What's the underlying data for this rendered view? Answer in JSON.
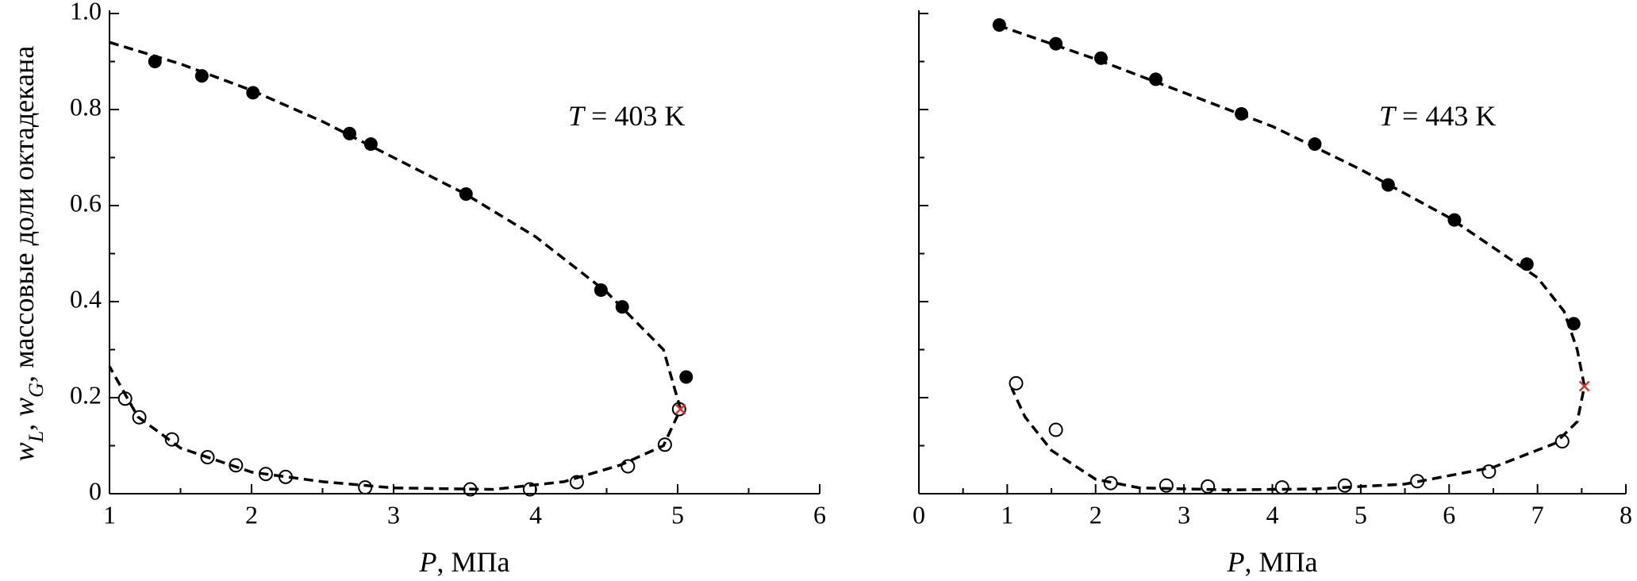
{
  "chart_data": [
    {
      "type": "scatter",
      "ylabel": [
        {
          "text": "w",
          "italic": true
        },
        {
          "text": "L",
          "italic": true,
          "sub": true
        },
        {
          "text": ", "
        },
        {
          "text": "w",
          "italic": true
        },
        {
          "text": "G",
          "italic": true,
          "sub": true
        },
        {
          "text": ", массовые доли октадекана"
        }
      ],
      "xlabel": [
        {
          "text": "P",
          "italic": true
        },
        {
          "text": ", МПа"
        }
      ],
      "annotation": [
        {
          "text": "T",
          "italic": true
        },
        {
          "text": " = 403 K"
        }
      ],
      "xlim": [
        1,
        6
      ],
      "ylim": [
        0,
        1
      ],
      "xticks": [
        1,
        2,
        3,
        4,
        5,
        6
      ],
      "xminorticks": [
        1.5,
        2.5,
        3.5,
        4.5,
        5.5
      ],
      "yticks": [
        0,
        0.2,
        0.4,
        0.6,
        0.8,
        {
          "value": 1,
          "label": "1.0"
        }
      ],
      "yminorticks": [
        0.1,
        0.3,
        0.5,
        0.7,
        0.9
      ],
      "ytick_labels": true,
      "series": [
        {
          "marker": "filled",
          "color": "#000000",
          "x": [
            1.32,
            1.65,
            2.01,
            2.69,
            2.84,
            3.51,
            4.46,
            4.61,
            5.06
          ],
          "values": [
            0.9,
            0.87,
            0.835,
            0.75,
            0.728,
            0.624,
            0.424,
            0.389,
            0.243
          ]
        },
        {
          "marker": "open",
          "color": "#000000",
          "x": [
            1.11,
            1.21,
            1.44,
            1.69,
            1.89,
            2.1,
            2.24,
            2.8,
            3.54,
            3.96,
            4.29,
            4.65,
            4.91,
            5.01
          ],
          "values": [
            0.198,
            0.159,
            0.113,
            0.076,
            0.059,
            0.041,
            0.035,
            0.013,
            0.009,
            0.009,
            0.024,
            0.057,
            0.102,
            0.176
          ]
        },
        {
          "marker": "dashed-line",
          "color": "#000000",
          "x": [
            1.0,
            1.5,
            2.0,
            2.5,
            3.0,
            3.5,
            4.0,
            4.5,
            4.9,
            5.02,
            4.9,
            4.6,
            4.2,
            3.7,
            3.0,
            2.5,
            2.0,
            1.5,
            1.2,
            1.0
          ],
          "values": [
            0.94,
            0.895,
            0.84,
            0.775,
            0.7,
            0.625,
            0.535,
            0.42,
            0.3,
            0.176,
            0.1,
            0.06,
            0.025,
            0.009,
            0.012,
            0.025,
            0.045,
            0.095,
            0.16,
            0.265
          ]
        },
        {
          "marker": "cross",
          "color": "#e03030",
          "x": [
            5.02
          ],
          "values": [
            0.176
          ]
        }
      ]
    },
    {
      "type": "scatter",
      "xlabel": [
        {
          "text": "P",
          "italic": true
        },
        {
          "text": ", МПа"
        }
      ],
      "annotation": [
        {
          "text": "T",
          "italic": true
        },
        {
          "text": " = 443 K"
        }
      ],
      "xlim": [
        0,
        8
      ],
      "ylim": [
        0,
        1
      ],
      "xticks": [
        0,
        1,
        2,
        3,
        4,
        5,
        6,
        7,
        8
      ],
      "xminorticks": [
        0.5,
        1.5,
        2.5,
        3.5,
        4.5,
        5.5,
        6.5,
        7.5
      ],
      "yticks": [
        0,
        0.2,
        0.4,
        0.6,
        0.8,
        1
      ],
      "yminorticks": [
        0.1,
        0.3,
        0.5,
        0.7,
        0.9
      ],
      "ytick_labels": false,
      "series": [
        {
          "marker": "filled",
          "color": "#000000",
          "x": [
            0.91,
            1.55,
            2.06,
            2.68,
            3.65,
            4.48,
            5.31,
            6.06,
            6.88,
            7.41
          ],
          "values": [
            0.976,
            0.937,
            0.907,
            0.863,
            0.791,
            0.728,
            0.643,
            0.57,
            0.478,
            0.354
          ]
        },
        {
          "marker": "open",
          "color": "#000000",
          "x": [
            1.1,
            1.55,
            2.17,
            2.8,
            3.27,
            4.11,
            4.82,
            5.64,
            6.45,
            7.28
          ],
          "values": [
            0.23,
            0.133,
            0.022,
            0.017,
            0.015,
            0.013,
            0.017,
            0.026,
            0.046,
            0.109
          ]
        },
        {
          "marker": "dashed-line",
          "color": "#000000",
          "x": [
            0.9,
            2.0,
            3.0,
            4.0,
            5.0,
            6.0,
            7.0,
            7.3,
            7.45,
            7.53,
            7.45,
            7.2,
            6.5,
            5.5,
            4.5,
            3.5,
            2.5,
            2.0,
            1.5,
            1.2,
            1.05
          ],
          "values": [
            0.975,
            0.905,
            0.835,
            0.765,
            0.675,
            0.575,
            0.45,
            0.38,
            0.3,
            0.224,
            0.15,
            0.105,
            0.055,
            0.02,
            0.01,
            0.008,
            0.012,
            0.03,
            0.09,
            0.16,
            0.22
          ]
        },
        {
          "marker": "cross",
          "color": "#e03030",
          "x": [
            7.53
          ],
          "values": [
            0.224
          ]
        }
      ]
    }
  ]
}
